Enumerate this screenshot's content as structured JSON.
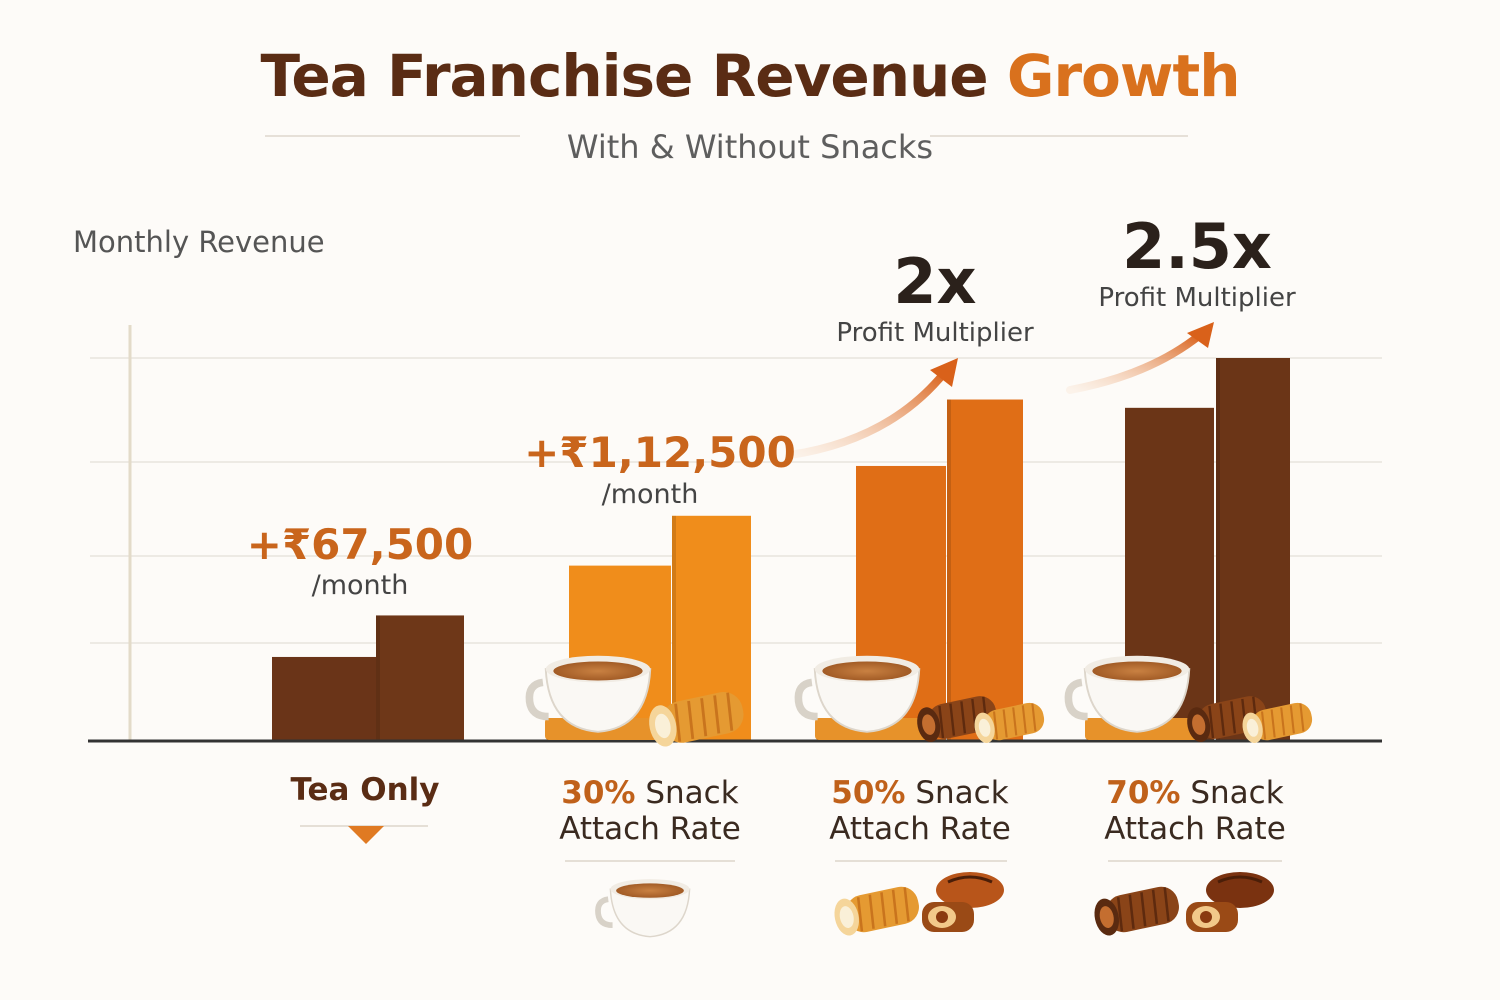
{
  "title_main": "Tea Franchise Revenue",
  "title_accent": "Growth",
  "subtitle": "With & Without Snacks",
  "colors": {
    "title": "#5a2c14",
    "accent": "#d9711d",
    "brown_bar": "#6b3417",
    "orange_bar": "#f08a1a",
    "deep_orange_bar": "#e06d14"
  },
  "chart_data": {
    "type": "bar",
    "ylabel": "Monthly Revenue",
    "categories": [
      "Tea Only",
      "30% Snack Attach Rate",
      "50% Snack Attach Rate",
      "70% Snack Attach Rate"
    ],
    "values_relative": [
      [
        1.0,
        1.5
      ],
      [
        2.1,
        2.7
      ],
      [
        3.3,
        4.1
      ],
      [
        4.0,
        4.6
      ]
    ],
    "ylim": [
      0,
      5
    ],
    "grid": true,
    "annotations": [
      {
        "category": 0,
        "value": "+₹67,500",
        "unit": "/month"
      },
      {
        "category": 1,
        "value": "+₹1,12,500",
        "unit": "/month"
      },
      {
        "category": 2,
        "multiplier": "2x",
        "label": "Profit Multiplier"
      },
      {
        "category": 3,
        "multiplier": "2.5x",
        "label": "Profit Multiplier"
      }
    ]
  },
  "labels": {
    "cat0": "Tea Only",
    "cat1_pct": "30%",
    "cat2_pct": "50%",
    "cat3_pct": "70%",
    "snack": "Snack",
    "attach_rate": "Attach Rate"
  },
  "annotations": {
    "a1_value": "+₹67,500",
    "a1_unit": "/month",
    "a2_value": "+₹1,12,500",
    "a2_unit": "/month",
    "m1_value": "2x",
    "m1_label": "Profit Multiplier",
    "m2_value": "2.5x",
    "m2_label": "Profit Multiplier"
  },
  "icons": [
    "tea-cup-icon",
    "swiss-roll-icon",
    "pastry-icon"
  ]
}
